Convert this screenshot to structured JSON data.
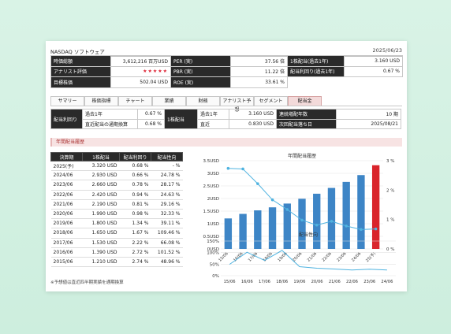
{
  "header": {
    "market": "NASDAQ  ソフトウェア",
    "date": "2025/06/23"
  },
  "stats": [
    [
      {
        "k": "時価総額",
        "v": "3,612,216 百万USD"
      },
      {
        "k": "PER (実)",
        "v": "37.56 倍"
      },
      {
        "k": "1株配当(過去1年)",
        "v": "3.160 USD"
      }
    ],
    [
      {
        "k": "アナリスト評価",
        "v": "★★★★★"
      },
      {
        "k": "PBR (実)",
        "v": "11.22 倍"
      },
      {
        "k": "配当利回り(過去1年)",
        "v": "0.67 %"
      }
    ],
    [
      {
        "k": "目標株価",
        "v": "502.04 USD"
      },
      {
        "k": "ROE (実)",
        "v": "33.61 %"
      }
    ]
  ],
  "tabs": [
    "サマリー",
    "株価指標",
    "チャート",
    "業績",
    "財務",
    "アナリスト予想",
    "セグメント",
    "配当金"
  ],
  "active_tab": "配当金",
  "dividend": {
    "label_yield": "配当利回り",
    "past_year_label": "過去1年",
    "past_year_yield": "0.67 %",
    "recent_label": "直近配当の通期換算",
    "recent_yield": "0.68 %",
    "label_dps": "1株配当",
    "dps_past_label": "過去1年",
    "dps_past": "3.160 USD",
    "dps_recent_label": "直近",
    "dps_recent": "0.830 USD",
    "streak_label": "連続増配年数",
    "streak": "10 期",
    "next_label": "次回配当落ち日",
    "next": "2025/08/21"
  },
  "section_title": "年間配当履歴",
  "table": {
    "headers": [
      "決算期",
      "1株配当",
      "配当利回り",
      "配当性向"
    ],
    "rows": [
      [
        "2025(予)",
        "3.320 USD",
        "0.68 %",
        "- %"
      ],
      [
        "2024/06",
        "2.930 USD",
        "0.66 %",
        "24.78 %"
      ],
      [
        "2023/06",
        "2.660 USD",
        "0.78 %",
        "28.17 %"
      ],
      [
        "2022/06",
        "2.420 USD",
        "0.94 %",
        "24.63 %"
      ],
      [
        "2021/06",
        "2.190 USD",
        "0.81 %",
        "29.16 %"
      ],
      [
        "2020/06",
        "1.990 USD",
        "0.98 %",
        "32.33 %"
      ],
      [
        "2019/06",
        "1.800 USD",
        "1.34 %",
        "39.11 %"
      ],
      [
        "2018/06",
        "1.650 USD",
        "1.67 %",
        "109.46 %"
      ],
      [
        "2017/06",
        "1.530 USD",
        "2.22 %",
        "66.08 %"
      ],
      [
        "2016/06",
        "1.390 USD",
        "2.72 %",
        "101.52 %"
      ],
      [
        "2015/06",
        "1.210 USD",
        "2.74 %",
        "48.96 %"
      ]
    ]
  },
  "note": "※予想値は直近四半期実績を通期換算",
  "chart_data": [
    {
      "type": "bar",
      "title": "年間配当履歴",
      "categories": [
        "15/06",
        "16/06",
        "17/06",
        "18/06",
        "19/06",
        "20/06",
        "21/06",
        "22/06",
        "23/06",
        "24/06",
        "25(予)"
      ],
      "series": [
        {
          "values": [
            1.21,
            1.39,
            1.53,
            1.65,
            1.8,
            1.99,
            2.19,
            2.42,
            2.66,
            2.93,
            3.32
          ]
        },
        {
          "values": [
            2.74,
            2.72,
            2.22,
            1.67,
            1.34,
            0.98,
            0.81,
            0.94,
            0.78,
            0.66,
            0.68
          ]
        }
      ],
      "yticks_left": [
        "0USD",
        "0.5USD",
        "1USD",
        "1.5USD",
        "2USD",
        "2.5USD",
        "3USD",
        "3.5USD"
      ],
      "yticks_right": [
        "0 %",
        "1 %",
        "2 %",
        "3 %"
      ],
      "ylim_left": [
        0,
        3.5
      ],
      "ylim_right": [
        0,
        3
      ],
      "colors": {
        "bar": "#3d85c6",
        "forecast": "#d9242b",
        "line": "#4fb3e0"
      }
    },
    {
      "type": "line",
      "title": "配当性向",
      "categories": [
        "15/06",
        "16/06",
        "17/06",
        "18/06",
        "19/06",
        "20/06",
        "21/06",
        "22/06",
        "23/06",
        "24/06"
      ],
      "values": [
        48.96,
        101.52,
        66.08,
        109.46,
        39.11,
        32.33,
        29.16,
        24.63,
        28.17,
        24.78
      ],
      "yticks": [
        "0%",
        "50%",
        "100%",
        "150%"
      ],
      "ylim": [
        0,
        150
      ],
      "colors": {
        "line": "#4fb3e0"
      }
    }
  ]
}
